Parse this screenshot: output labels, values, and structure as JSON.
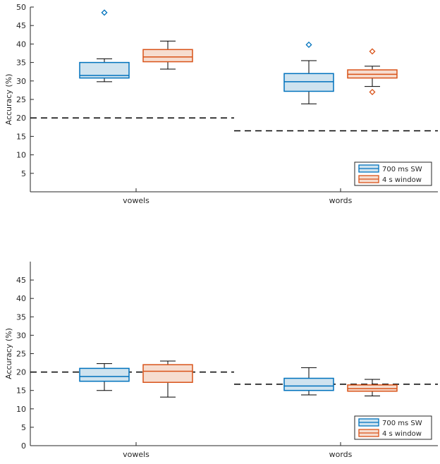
{
  "colors": {
    "series1": "#0072BD",
    "series1_fill": "#cfe3ef",
    "series2": "#D95319",
    "series2_fill": "#f6ddd0",
    "chance": "#000000",
    "axis": "#262626"
  },
  "chart_data": [
    {
      "type": "box",
      "title": "",
      "xlabel": "",
      "ylabel": "Accuracy (%)",
      "ylim": [
        0,
        50
      ],
      "yticks": [
        5,
        10,
        15,
        20,
        25,
        30,
        35,
        40,
        45,
        50
      ],
      "categories": [
        "vowels",
        "words"
      ],
      "legend_position": "bottom-right",
      "series": [
        {
          "name": "700 ms SW",
          "boxes": [
            {
              "whisker_low": 29.8,
              "q1": 30.8,
              "median": 31.5,
              "q3": 35.0,
              "whisker_high": 36.0,
              "outliers": [
                48.5
              ]
            },
            {
              "whisker_low": 23.8,
              "q1": 27.2,
              "median": 29.8,
              "q3": 32.0,
              "whisker_high": 35.5,
              "outliers": [
                39.8
              ]
            }
          ]
        },
        {
          "name": "4 s window",
          "boxes": [
            {
              "whisker_low": 33.2,
              "q1": 35.2,
              "median": 36.5,
              "q3": 38.5,
              "whisker_high": 40.8,
              "outliers": []
            },
            {
              "whisker_low": 28.5,
              "q1": 30.8,
              "median": 31.8,
              "q3": 33.0,
              "whisker_high": 34.0,
              "outliers": [
                38.0,
                27.0
              ]
            }
          ]
        }
      ],
      "chance_levels": [
        20,
        16.5
      ]
    },
    {
      "type": "box",
      "title": "",
      "xlabel": "",
      "ylabel": "Accuracy (%)",
      "ylim": [
        0,
        50
      ],
      "yticks": [
        0,
        5,
        10,
        15,
        20,
        25,
        30,
        35,
        40,
        45
      ],
      "categories": [
        "vowels",
        "words"
      ],
      "legend_position": "bottom-right",
      "series": [
        {
          "name": "700 ms SW",
          "boxes": [
            {
              "whisker_low": 15.0,
              "q1": 17.5,
              "median": 18.8,
              "q3": 21.0,
              "whisker_high": 22.3,
              "outliers": []
            },
            {
              "whisker_low": 13.8,
              "q1": 15.0,
              "median": 16.2,
              "q3": 18.3,
              "whisker_high": 21.2,
              "outliers": []
            }
          ]
        },
        {
          "name": "4 s window",
          "boxes": [
            {
              "whisker_low": 13.2,
              "q1": 17.2,
              "median": 20.2,
              "q3": 22.0,
              "whisker_high": 23.0,
              "outliers": []
            },
            {
              "whisker_low": 13.5,
              "q1": 14.8,
              "median": 15.5,
              "q3": 16.5,
              "whisker_high": 18.0,
              "outliers": []
            }
          ]
        }
      ],
      "chance_levels": [
        20,
        16.7
      ]
    }
  ]
}
